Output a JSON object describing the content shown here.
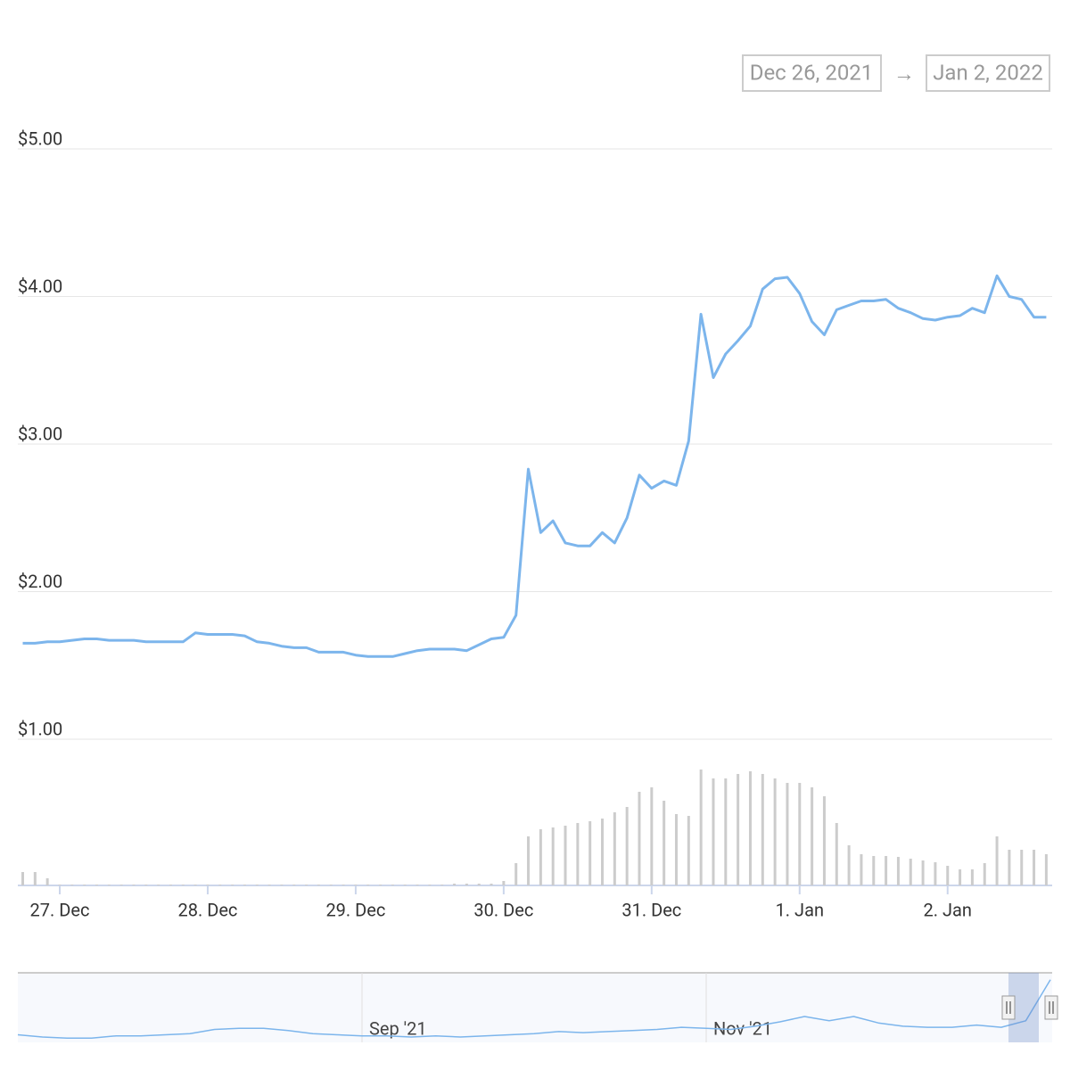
{
  "range": {
    "from": "Dec 26, 2021",
    "separator": "→",
    "to": "Jan 2, 2022"
  },
  "chart_data": [
    {
      "type": "line",
      "color": "#7cb5ec",
      "grid": true,
      "categories": [
        null,
        null,
        null,
        "27. Dec",
        null,
        null,
        null,
        null,
        null,
        null,
        null,
        null,
        null,
        null,
        null,
        "28. Dec",
        null,
        null,
        null,
        null,
        null,
        null,
        null,
        null,
        null,
        null,
        null,
        "29. Dec",
        null,
        null,
        null,
        null,
        null,
        null,
        null,
        null,
        null,
        null,
        null,
        "30. Dec",
        null,
        null,
        null,
        null,
        null,
        null,
        null,
        null,
        null,
        null,
        null,
        "31. Dec",
        null,
        null,
        null,
        null,
        null,
        null,
        null,
        null,
        null,
        null,
        null,
        "1. Jan",
        null,
        null,
        null,
        null,
        null,
        null,
        null,
        null,
        null,
        null,
        null,
        "2. Jan",
        null,
        null,
        null,
        null,
        null,
        null,
        null,
        null
      ],
      "values": [
        1.65,
        1.65,
        1.66,
        1.66,
        1.67,
        1.68,
        1.68,
        1.67,
        1.67,
        1.67,
        1.66,
        1.66,
        1.66,
        1.66,
        1.72,
        1.71,
        1.71,
        1.71,
        1.7,
        1.66,
        1.65,
        1.63,
        1.62,
        1.62,
        1.59,
        1.59,
        1.59,
        1.57,
        1.56,
        1.56,
        1.56,
        1.58,
        1.6,
        1.61,
        1.61,
        1.61,
        1.6,
        1.64,
        1.68,
        1.69,
        1.84,
        2.83,
        2.4,
        2.48,
        2.33,
        2.31,
        2.31,
        2.4,
        2.33,
        2.5,
        2.79,
        2.7,
        2.75,
        2.72,
        3.02,
        3.88,
        3.45,
        3.61,
        3.7,
        3.8,
        4.05,
        4.12,
        4.13,
        4.02,
        3.83,
        3.74,
        3.91,
        3.94,
        3.97,
        3.97,
        3.98,
        3.92,
        3.89,
        3.85,
        3.84,
        3.86,
        3.87,
        3.92,
        3.89,
        4.14,
        4.0,
        3.98,
        3.86,
        3.86
      ],
      "ylim": [
        1,
        5
      ],
      "yticks": [
        {
          "value": 1,
          "label": "$1.00"
        },
        {
          "value": 2,
          "label": "$2.00"
        },
        {
          "value": 3,
          "label": "$3.00"
        },
        {
          "value": 4,
          "label": "$4.00"
        },
        {
          "value": 5,
          "label": "$5.00"
        }
      ]
    },
    {
      "type": "bar",
      "color": "#cccccc",
      "ylim": [
        0,
        150
      ],
      "values": [
        15,
        15,
        8,
        1,
        1,
        1,
        1,
        1,
        1,
        1,
        1,
        1,
        1,
        1,
        1,
        1,
        1,
        1,
        1,
        1,
        1,
        1,
        1,
        1,
        1,
        1,
        1,
        1,
        1,
        1,
        1,
        1,
        1,
        1,
        1,
        2,
        2,
        2,
        2,
        5,
        25,
        55,
        63,
        65,
        67,
        70,
        72,
        75,
        82,
        88,
        105,
        110,
        95,
        80,
        78,
        130,
        120,
        120,
        125,
        128,
        125,
        120,
        115,
        115,
        110,
        100,
        70,
        45,
        35,
        33,
        33,
        32,
        30,
        28,
        26,
        22,
        18,
        18,
        25,
        55,
        40,
        40,
        40,
        35
      ]
    },
    {
      "type": "line",
      "color": "#7cb5ec",
      "ylim": [
        1.2,
        4.3
      ],
      "categories": [
        null,
        null,
        null,
        null,
        null,
        null,
        null,
        null,
        null,
        null,
        null,
        null,
        null,
        null,
        "Sep '21",
        null,
        null,
        null,
        null,
        null,
        null,
        null,
        null,
        null,
        null,
        null,
        null,
        null,
        "Nov '21",
        null,
        null,
        null,
        null,
        null,
        null,
        null,
        null,
        null,
        null,
        null,
        null,
        null,
        null
      ],
      "values": [
        1.55,
        1.45,
        1.4,
        1.4,
        1.5,
        1.5,
        1.55,
        1.6,
        1.8,
        1.85,
        1.85,
        1.75,
        1.6,
        1.55,
        1.5,
        1.5,
        1.45,
        1.5,
        1.45,
        1.5,
        1.55,
        1.6,
        1.7,
        1.65,
        1.7,
        1.75,
        1.8,
        1.9,
        1.85,
        1.8,
        1.95,
        2.15,
        2.4,
        2.2,
        2.4,
        2.1,
        1.95,
        1.9,
        1.9,
        2.0,
        1.9,
        2.2,
        4.1
      ]
    }
  ]
}
